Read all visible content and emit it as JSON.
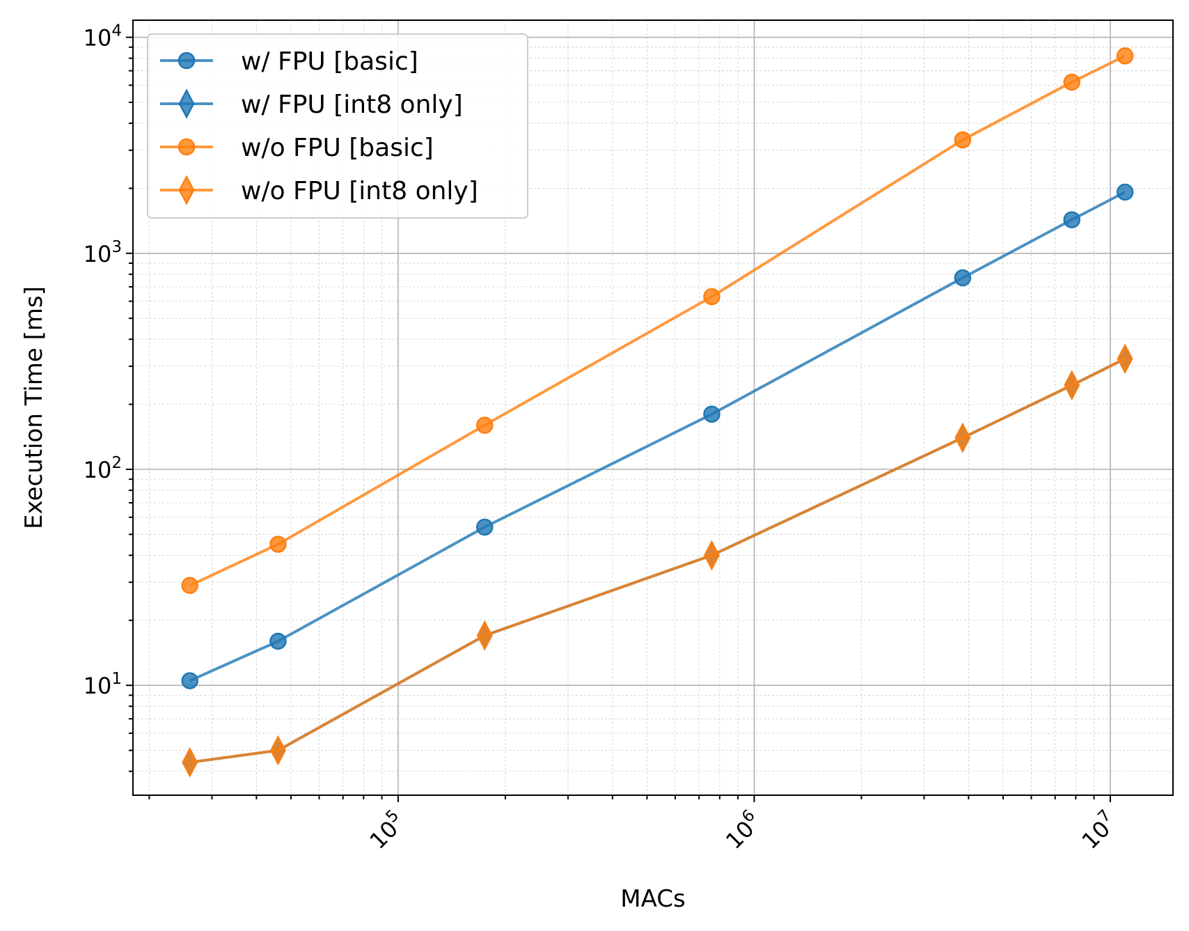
{
  "chart_data": {
    "type": "line",
    "title": "",
    "xlabel": "MACs",
    "ylabel": "Execution Time [ms]",
    "xscale": "log",
    "yscale": "log",
    "xlim": [
      18000,
      15000000
    ],
    "ylim": [
      3.1,
      12000
    ],
    "grid": true,
    "legend_position": "top-left",
    "x_tick_labels": [
      "10^5",
      "10^6",
      "10^7"
    ],
    "y_tick_labels": [
      "10^1",
      "10^2",
      "10^3",
      "10^4"
    ],
    "x": [
      26000,
      46000,
      175000,
      760000,
      3850000,
      7800000,
      11000000
    ],
    "series": [
      {
        "name": "w/ FPU [basic]",
        "color": "#1f77b4",
        "marker": "circle",
        "values": [
          10.5,
          16,
          54,
          180,
          770,
          1430,
          1920
        ]
      },
      {
        "name": "w/ FPU [int8 only]",
        "color": "#1f77b4",
        "marker": "diamond",
        "values": [
          4.4,
          5.0,
          17,
          40,
          140,
          245,
          325
        ]
      },
      {
        "name": "w/o FPU [basic]",
        "color": "#ff7f0e",
        "marker": "circle",
        "values": [
          29,
          45,
          160,
          630,
          3350,
          6200,
          8200
        ]
      },
      {
        "name": "w/o FPU [int8 only]",
        "color": "#ff7f0e",
        "marker": "diamond",
        "values": [
          4.4,
          5.0,
          17,
          40,
          140,
          245,
          325
        ]
      }
    ]
  }
}
